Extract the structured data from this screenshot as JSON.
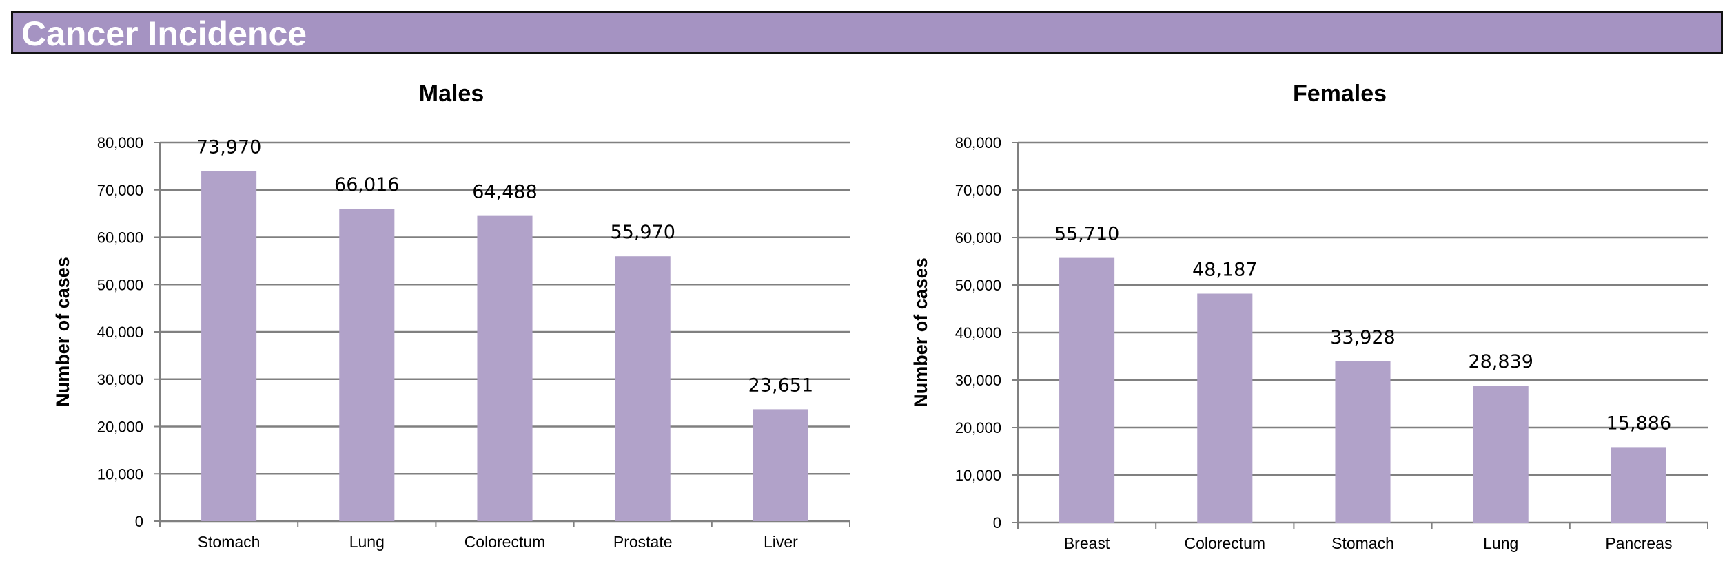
{
  "header": {
    "title": "Cancer Incidence"
  },
  "colors": {
    "header_bg": "#a593c2",
    "bar": "#b1a2c9",
    "grid": "#808080",
    "axis": "#808080"
  },
  "chart_data": [
    {
      "type": "bar",
      "title": "Males",
      "xlabel": "",
      "ylabel": "Number of cases",
      "ylim": [
        0,
        80000
      ],
      "yticks": [
        0,
        10000,
        20000,
        30000,
        40000,
        50000,
        60000,
        70000,
        80000
      ],
      "ytick_labels": [
        "0",
        "10,000",
        "20,000",
        "30,000",
        "40,000",
        "50,000",
        "60,000",
        "70,000",
        "80,000"
      ],
      "grid": true,
      "categories": [
        "Stomach",
        "Lung",
        "Colorectum",
        "Prostate",
        "Liver"
      ],
      "values": [
        73970,
        66016,
        64488,
        55970,
        23651
      ],
      "value_labels": [
        "73,970",
        "66,016",
        "64,488",
        "55,970",
        "23,651"
      ]
    },
    {
      "type": "bar",
      "title": "Females",
      "xlabel": "",
      "ylabel": "Number of cases",
      "ylim": [
        0,
        80000
      ],
      "yticks": [
        0,
        10000,
        20000,
        30000,
        40000,
        50000,
        60000,
        70000,
        80000
      ],
      "ytick_labels": [
        "0",
        "10,000",
        "20,000",
        "30,000",
        "40,000",
        "50,000",
        "60,000",
        "70,000",
        "80,000"
      ],
      "grid": true,
      "categories": [
        "Breast",
        "Colorectum",
        "Stomach",
        "Lung",
        "Pancreas"
      ],
      "values": [
        55710,
        48187,
        33928,
        28839,
        15886
      ],
      "value_labels": [
        "55,710",
        "48,187",
        "33,928",
        "28,839",
        "15,886"
      ]
    }
  ]
}
